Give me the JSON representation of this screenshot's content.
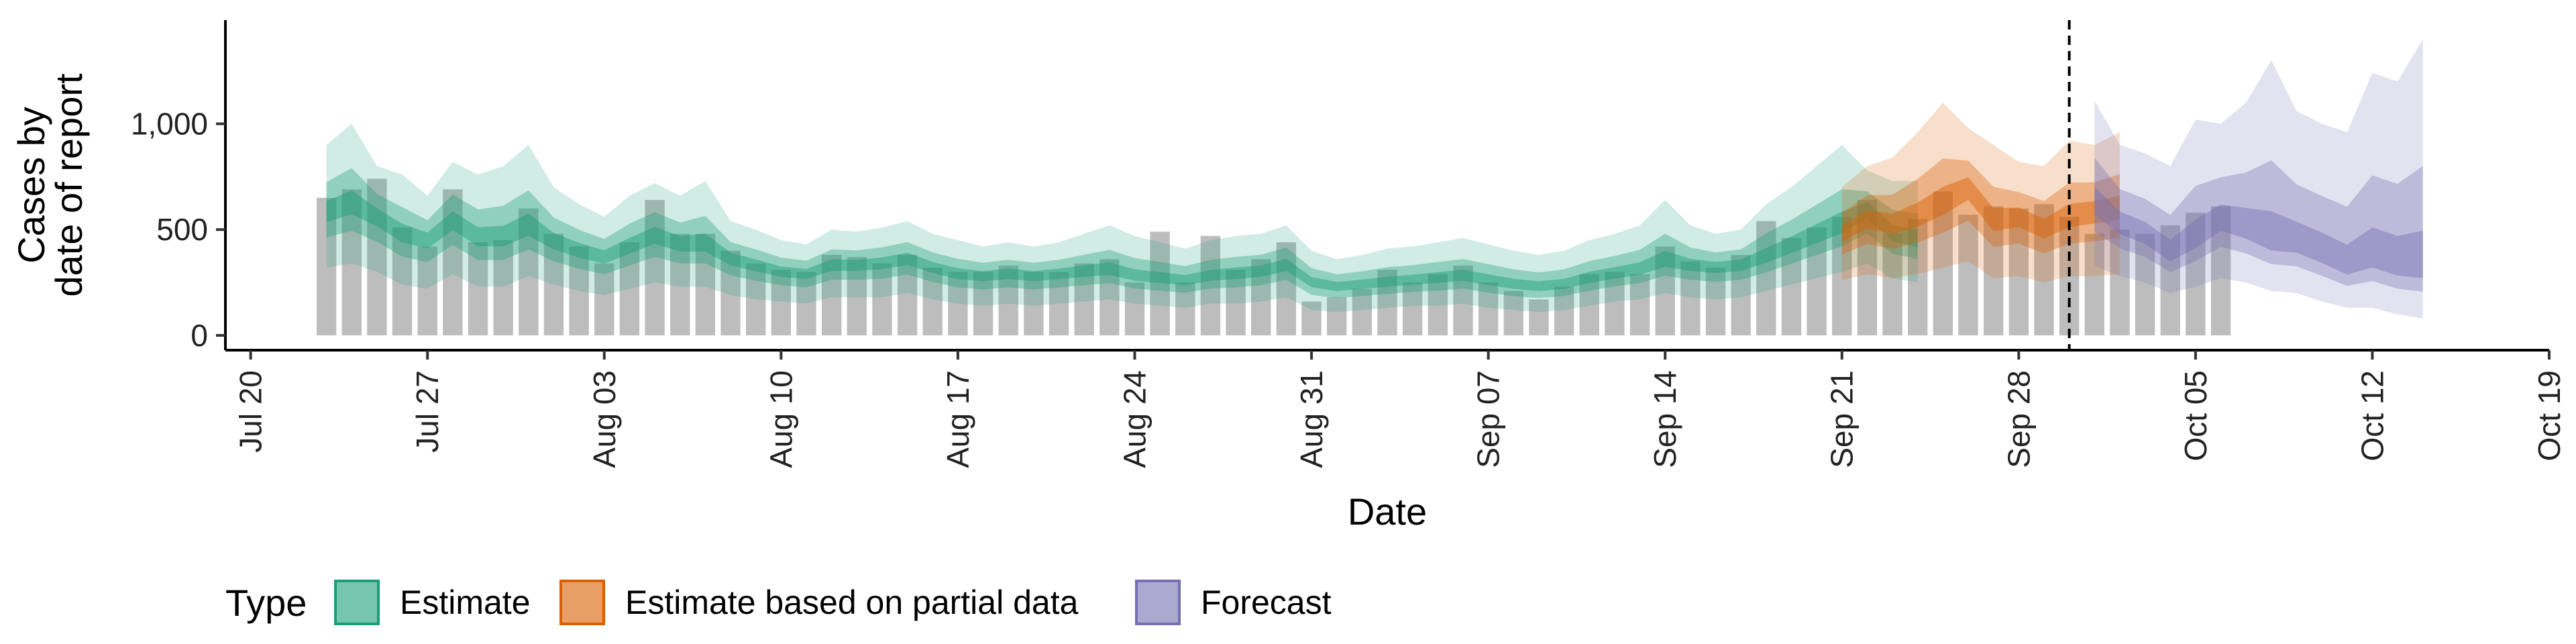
{
  "chart_data": {
    "type": "area",
    "xlabel": "Date",
    "ylabel": [
      "Cases by",
      "date of report"
    ],
    "x_range": [
      "2020-07-19",
      "2020-10-19"
    ],
    "y_range": [
      -70,
      1490
    ],
    "y_ticks": [
      {
        "value": 0,
        "label": "0"
      },
      {
        "value": 500,
        "label": "500"
      },
      {
        "value": 1000,
        "label": "1,000"
      }
    ],
    "x_ticks": [
      {
        "date": "2020-07-20",
        "label": "Jul 20"
      },
      {
        "date": "2020-07-27",
        "label": "Jul 27"
      },
      {
        "date": "2020-08-03",
        "label": "Aug 03"
      },
      {
        "date": "2020-08-10",
        "label": "Aug 10"
      },
      {
        "date": "2020-08-17",
        "label": "Aug 17"
      },
      {
        "date": "2020-08-24",
        "label": "Aug 24"
      },
      {
        "date": "2020-08-31",
        "label": "Aug 31"
      },
      {
        "date": "2020-09-07",
        "label": "Sep 07"
      },
      {
        "date": "2020-09-14",
        "label": "Sep 14"
      },
      {
        "date": "2020-09-21",
        "label": "Sep 21"
      },
      {
        "date": "2020-09-28",
        "label": "Sep 28"
      },
      {
        "date": "2020-10-05",
        "label": "Oct 05"
      },
      {
        "date": "2020-10-12",
        "label": "Oct 12"
      },
      {
        "date": "2020-10-19",
        "label": "Oct 19"
      }
    ],
    "vertical_line_date": "2020-09-30",
    "bar_color": "#bdbdbd",
    "bars": {
      "start_date": "2020-07-23",
      "values": [
        650,
        690,
        740,
        510,
        420,
        690,
        440,
        450,
        600,
        480,
        420,
        340,
        440,
        640,
        480,
        480,
        400,
        340,
        310,
        300,
        380,
        370,
        340,
        380,
        320,
        300,
        300,
        330,
        300,
        300,
        340,
        360,
        250,
        490,
        250,
        470,
        310,
        360,
        440,
        160,
        180,
        220,
        310,
        250,
        290,
        330,
        250,
        210,
        170,
        230,
        290,
        300,
        290,
        420,
        350,
        320,
        380,
        540,
        460,
        510,
        560,
        640,
        480,
        550,
        680,
        570,
        610,
        600,
        620,
        560,
        480,
        500,
        480,
        520,
        580,
        610
      ]
    },
    "series": [
      {
        "name": "Estimate",
        "color": "#1b9e77",
        "start_date": "2020-07-23",
        "median": [
          580,
          620,
          560,
          480,
          450,
          540,
          460,
          460,
          510,
          440,
          400,
          370,
          420,
          470,
          430,
          430,
          360,
          330,
          300,
          290,
          330,
          330,
          340,
          360,
          320,
          290,
          280,
          290,
          280,
          290,
          300,
          310,
          280,
          270,
          260,
          280,
          290,
          300,
          330,
          250,
          230,
          240,
          250,
          260,
          270,
          280,
          260,
          240,
          230,
          240,
          270,
          290,
          310,
          350,
          330,
          320,
          330,
          370,
          420,
          470,
          520,
          600,
          480,
          450
        ],
        "lower90": [
          320,
          340,
          300,
          240,
          220,
          290,
          230,
          230,
          280,
          240,
          210,
          190,
          220,
          250,
          230,
          230,
          190,
          170,
          160,
          150,
          180,
          180,
          180,
          200,
          170,
          150,
          140,
          150,
          140,
          150,
          160,
          170,
          150,
          140,
          130,
          150,
          150,
          160,
          180,
          120,
          110,
          120,
          130,
          140,
          140,
          150,
          130,
          120,
          110,
          120,
          140,
          160,
          170,
          200,
          180,
          170,
          180,
          210,
          240,
          270,
          300,
          340,
          270,
          250
        ],
        "upper90": [
          900,
          1000,
          800,
          760,
          660,
          820,
          760,
          800,
          900,
          700,
          620,
          560,
          660,
          720,
          660,
          730,
          540,
          500,
          450,
          430,
          500,
          490,
          510,
          540,
          480,
          450,
          420,
          440,
          420,
          440,
          480,
          520,
          470,
          440,
          410,
          450,
          470,
          480,
          520,
          400,
          360,
          380,
          410,
          420,
          440,
          460,
          430,
          400,
          380,
          400,
          450,
          480,
          520,
          640,
          520,
          480,
          500,
          620,
          700,
          800,
          900,
          780,
          730,
          730
        ]
      },
      {
        "name": "Estimate based on partial data",
        "color": "#d95f02",
        "start_date": "2020-09-21",
        "median": [
          480,
          550,
          520,
          560,
          620,
          700,
          540,
          560,
          500,
          560,
          580,
          600
        ],
        "lower90": [
          260,
          290,
          270,
          290,
          320,
          350,
          270,
          280,
          250,
          280,
          280,
          290
        ],
        "upper90": [
          700,
          800,
          840,
          960,
          1100,
          980,
          900,
          820,
          800,
          920,
          900,
          960
        ]
      },
      {
        "name": "Forecast",
        "color": "#7570b3",
        "start_date": "2020-10-01",
        "median": [
          620,
          520,
          470,
          380,
          450,
          540,
          500,
          440,
          430,
          380,
          320,
          360,
          320,
          310
        ],
        "lower90": [
          330,
          280,
          250,
          200,
          230,
          270,
          250,
          210,
          200,
          160,
          130,
          130,
          100,
          80
        ],
        "upper90": [
          1110,
          900,
          860,
          800,
          1020,
          1000,
          1100,
          1300,
          1060,
          1000,
          960,
          1240,
          1200,
          1400
        ]
      }
    ],
    "legend": {
      "title": "Type",
      "position": "bottom",
      "entries": [
        "Estimate",
        "Estimate based on partial data",
        "Forecast"
      ]
    }
  }
}
